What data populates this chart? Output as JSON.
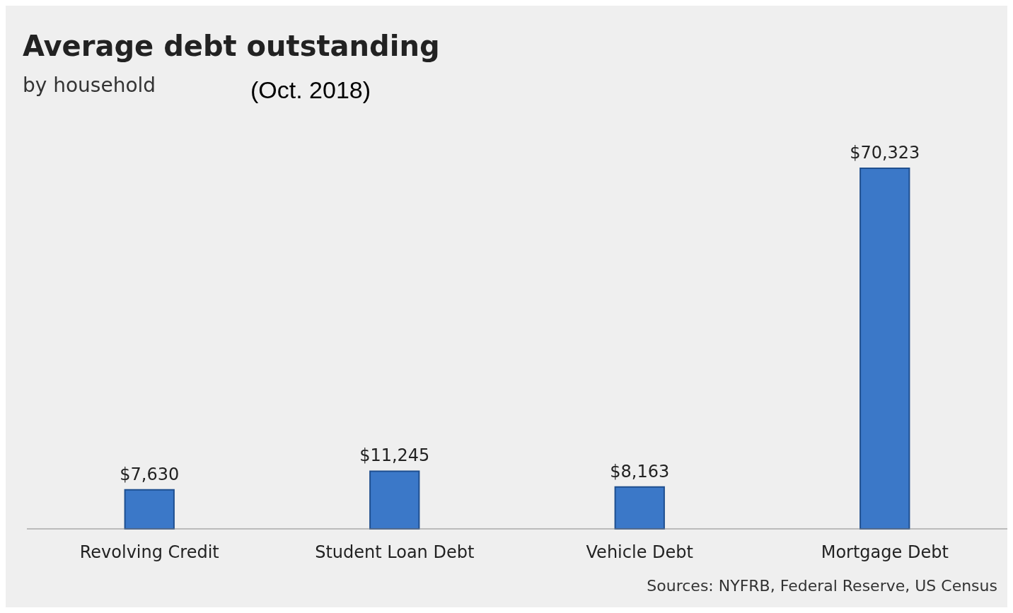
{
  "chart_data": {
    "type": "bar",
    "title": "Average debt outstanding",
    "subtitle": "by household",
    "annotations": [
      "(Oct. 2018)",
      "Sources: NYFRB, Federal Reserve, US Census"
    ],
    "categories": [
      "Revolving Credit",
      "Student Loan Debt",
      "Vehicle Debt",
      "Mortgage Debt"
    ],
    "values": [
      7630,
      11245,
      8163,
      70323
    ],
    "value_labels": [
      "$7,630",
      "$11,245",
      "$8,163",
      "$70,323"
    ],
    "color": "#3b78c8",
    "grid": false,
    "legend": false
  }
}
